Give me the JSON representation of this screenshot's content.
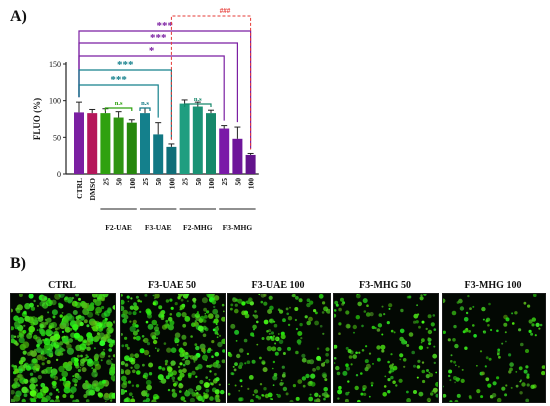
{
  "panel_a_label": "A)",
  "panel_b_label": "B)",
  "chart_data": {
    "type": "bar",
    "ylabel": "FLUO (%)",
    "ylim": [
      0,
      150
    ],
    "yticks": [
      0,
      50,
      100,
      150
    ],
    "categories": [
      "CTRL",
      "DMSO",
      "25",
      "50",
      "100",
      "25",
      "50",
      "100",
      "25",
      "50",
      "100",
      "25",
      "50",
      "100"
    ],
    "values": [
      84,
      83,
      83,
      77,
      70,
      83,
      54,
      37,
      96,
      92,
      83,
      62,
      48,
      26
    ],
    "errors": [
      14,
      5,
      6,
      8,
      4,
      7,
      16,
      4,
      5,
      6,
      4,
      4,
      16,
      2
    ],
    "colors": [
      "#7b1fa2",
      "#b5175b",
      "#2fa10f",
      "#2e9412",
      "#26870c",
      "#14808c",
      "#127884",
      "#0f6e78",
      "#1f9e80",
      "#1a9375",
      "#16886a",
      "#7a1aa8",
      "#6e169a",
      "#63138c"
    ],
    "groups": [
      {
        "label": "F2-UAE",
        "start": 2,
        "end": 4
      },
      {
        "label": "F3-UAE",
        "start": 5,
        "end": 7
      },
      {
        "label": "F2-MHG",
        "start": 8,
        "end": 10
      },
      {
        "label": "F3-MHG",
        "start": 11,
        "end": 13
      }
    ],
    "ns_marks": [
      {
        "from": 2,
        "to": 4,
        "label": "n.s",
        "color": "#2fa10f"
      },
      {
        "from": 5,
        "to": 5,
        "label": "n.s",
        "color": "#127884"
      },
      {
        "from": 8,
        "to": 10,
        "label": "n.s",
        "color": "#16886a"
      }
    ],
    "significance": [
      {
        "from": 0,
        "to": 13,
        "label": "***",
        "color": "#7b1fa2",
        "style": "solid"
      },
      {
        "from": 0,
        "to": 12,
        "label": "***",
        "color": "#7b1fa2",
        "style": "solid"
      },
      {
        "from": 0,
        "to": 11,
        "label": "*",
        "color": "#7b1fa2",
        "style": "solid"
      },
      {
        "from": 0,
        "to": 7,
        "label": "***",
        "color": "#14808c",
        "style": "solid"
      },
      {
        "from": 0,
        "to": 6,
        "label": "***",
        "color": "#14808c",
        "style": "solid"
      },
      {
        "from": 7,
        "to": 13,
        "label": "###",
        "color": "#e53935",
        "style": "dashed"
      }
    ]
  },
  "micrographs": [
    {
      "label": "CTRL",
      "density": 1.0
    },
    {
      "label": "F3-UAE 50",
      "density": 0.72
    },
    {
      "label": "F3-UAE 100",
      "density": 0.38
    },
    {
      "label": "F3-MHG 50",
      "density": 0.3
    },
    {
      "label": "F3-MHG 100",
      "density": 0.2
    }
  ]
}
